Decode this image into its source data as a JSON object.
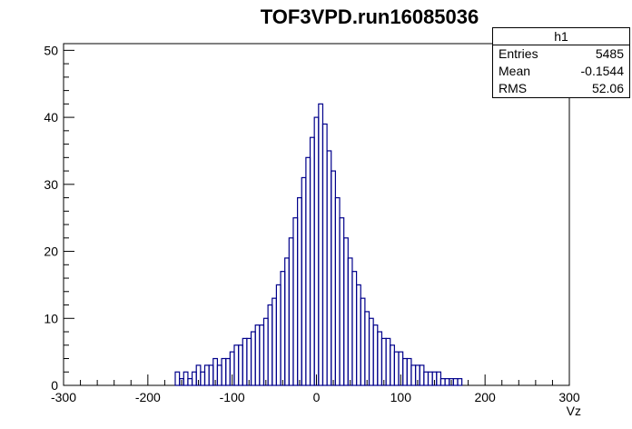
{
  "chart_data": {
    "type": "bar",
    "title": "TOF3VPD.run16085036",
    "xlabel": "Vz",
    "ylabel": "",
    "xlim": [
      -300,
      300
    ],
    "ylim": [
      0,
      51
    ],
    "x_ticks": [
      -300,
      -200,
      -100,
      0,
      100,
      200,
      300
    ],
    "y_ticks": [
      0,
      10,
      20,
      30,
      40,
      50
    ],
    "bin_width": 1,
    "series": [
      {
        "values_note": "",
        "bins": [
          {
            "x": -165,
            "y": 2
          },
          {
            "x": -160,
            "y": 1
          },
          {
            "x": -155,
            "y": 2
          },
          {
            "x": -150,
            "y": 1
          },
          {
            "x": -145,
            "y": 2
          },
          {
            "x": -140,
            "y": 3
          },
          {
            "x": -135,
            "y": 2
          },
          {
            "x": -130,
            "y": 3
          },
          {
            "x": -125,
            "y": 3
          },
          {
            "x": -120,
            "y": 4
          },
          {
            "x": -115,
            "y": 3
          },
          {
            "x": -110,
            "y": 4
          },
          {
            "x": -105,
            "y": 4
          },
          {
            "x": -100,
            "y": 5
          },
          {
            "x": -95,
            "y": 6
          },
          {
            "x": -90,
            "y": 6
          },
          {
            "x": -85,
            "y": 7
          },
          {
            "x": -80,
            "y": 7
          },
          {
            "x": -75,
            "y": 8
          },
          {
            "x": -70,
            "y": 9
          },
          {
            "x": -65,
            "y": 9
          },
          {
            "x": -60,
            "y": 10
          },
          {
            "x": -55,
            "y": 12
          },
          {
            "x": -50,
            "y": 13
          },
          {
            "x": -45,
            "y": 15
          },
          {
            "x": -40,
            "y": 17
          },
          {
            "x": -35,
            "y": 19
          },
          {
            "x": -30,
            "y": 22
          },
          {
            "x": -25,
            "y": 25
          },
          {
            "x": -20,
            "y": 28
          },
          {
            "x": -15,
            "y": 31
          },
          {
            "x": -10,
            "y": 34
          },
          {
            "x": -5,
            "y": 37
          },
          {
            "x": 0,
            "y": 40
          },
          {
            "x": 5,
            "y": 42
          },
          {
            "x": 10,
            "y": 39
          },
          {
            "x": 15,
            "y": 35
          },
          {
            "x": 20,
            "y": 32
          },
          {
            "x": 25,
            "y": 28
          },
          {
            "x": 30,
            "y": 25
          },
          {
            "x": 35,
            "y": 22
          },
          {
            "x": 40,
            "y": 19
          },
          {
            "x": 45,
            "y": 17
          },
          {
            "x": 50,
            "y": 15
          },
          {
            "x": 55,
            "y": 13
          },
          {
            "x": 60,
            "y": 11
          },
          {
            "x": 65,
            "y": 10
          },
          {
            "x": 70,
            "y": 9
          },
          {
            "x": 75,
            "y": 8
          },
          {
            "x": 80,
            "y": 7
          },
          {
            "x": 85,
            "y": 7
          },
          {
            "x": 90,
            "y": 6
          },
          {
            "x": 95,
            "y": 5
          },
          {
            "x": 100,
            "y": 5
          },
          {
            "x": 105,
            "y": 4
          },
          {
            "x": 110,
            "y": 4
          },
          {
            "x": 115,
            "y": 3
          },
          {
            "x": 120,
            "y": 3
          },
          {
            "x": 125,
            "y": 3
          },
          {
            "x": 130,
            "y": 2
          },
          {
            "x": 135,
            "y": 2
          },
          {
            "x": 140,
            "y": 2
          },
          {
            "x": 145,
            "y": 2
          },
          {
            "x": 150,
            "y": 1
          },
          {
            "x": 155,
            "y": 1
          },
          {
            "x": 160,
            "y": 1
          },
          {
            "x": 165,
            "y": 1
          },
          {
            "x": 170,
            "y": 1
          }
        ]
      }
    ],
    "grid": false,
    "legend": "none",
    "colors": {
      "bars": "#00008b",
      "axes": "#000000"
    }
  },
  "stats": {
    "name": "h1",
    "entries_label": "Entries",
    "entries_value": "5485",
    "mean_label": "Mean",
    "mean_value": "-0.1544",
    "rms_label": "RMS",
    "rms_value": "52.06"
  }
}
